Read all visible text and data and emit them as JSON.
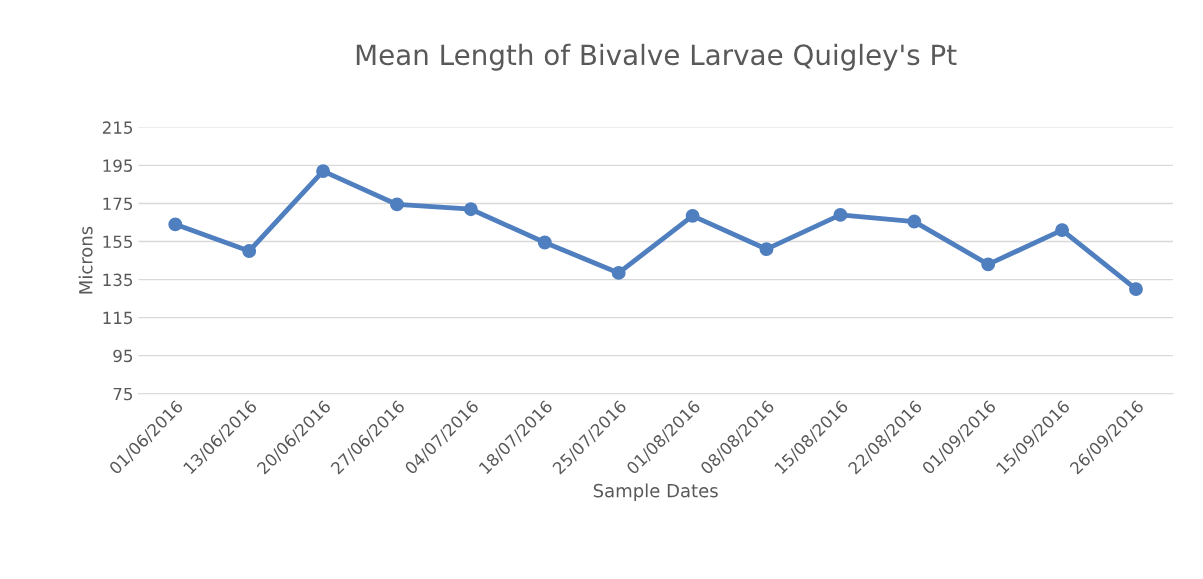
{
  "chart_data": {
    "type": "line",
    "title": "Mean Length of Bivalve Larvae Quigley's Pt",
    "xlabel": "Sample Dates",
    "ylabel": "Microns",
    "categories": [
      "01/06/2016",
      "13/06/2016",
      "20/06/2016",
      "27/06/2016",
      "04/07/2016",
      "18/07/2016",
      "25/07/2016",
      "01/08/2016",
      "08/08/2016",
      "15/08/2016",
      "22/08/2016",
      "01/09/2016",
      "15/09/2016",
      "26/09/2016"
    ],
    "series": [
      {
        "color": "#4f7fbf",
        "values": [
          164,
          150,
          192,
          174.5,
          172,
          154.5,
          138.5,
          168.5,
          151,
          169,
          165.5,
          143,
          161,
          130
        ]
      }
    ],
    "ylim": [
      75,
      215
    ],
    "yticks": [
      75,
      95,
      115,
      135,
      155,
      175,
      195,
      215
    ],
    "grid": "y",
    "marker": "circle",
    "line_style": "solid"
  }
}
